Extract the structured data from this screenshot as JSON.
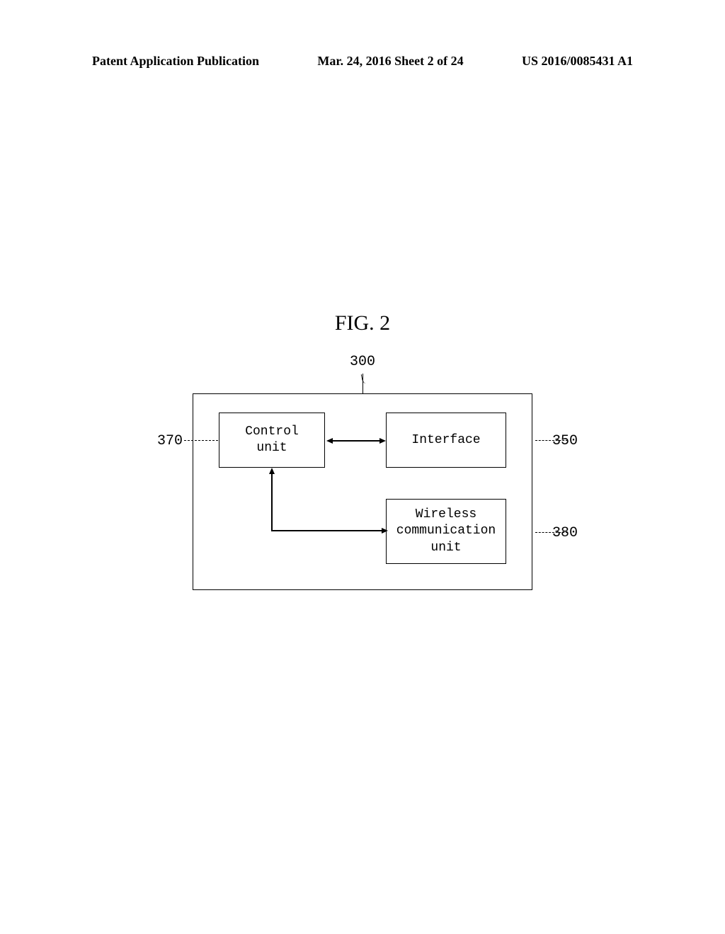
{
  "header": {
    "left": "Patent Application Publication",
    "center": "Mar. 24, 2016  Sheet 2 of 24",
    "right": "US 2016/0085431 A1"
  },
  "figure": {
    "title": "FIG. 2",
    "type": "block-diagram",
    "outer_ref": "300",
    "blocks": {
      "control": {
        "label": "Control\nunit",
        "ref": "370"
      },
      "interface": {
        "label": "Interface",
        "ref": "350"
      },
      "wireless": {
        "label": "Wireless\ncommunication\nunit",
        "ref": "380"
      }
    },
    "edges": [
      {
        "from": "control",
        "to": "interface",
        "style": "bidirectional"
      },
      {
        "from": "control",
        "to": "wireless",
        "style": "bidirectional-elbow"
      }
    ],
    "styling": {
      "border_color": "#000000",
      "border_width": 1.5,
      "background_color": "#ffffff",
      "block_font": "Courier New",
      "block_fontsize": 18,
      "ref_fontsize": 20,
      "title_fontsize": 30,
      "title_font": "Times New Roman",
      "leader_style": "dashed"
    }
  }
}
